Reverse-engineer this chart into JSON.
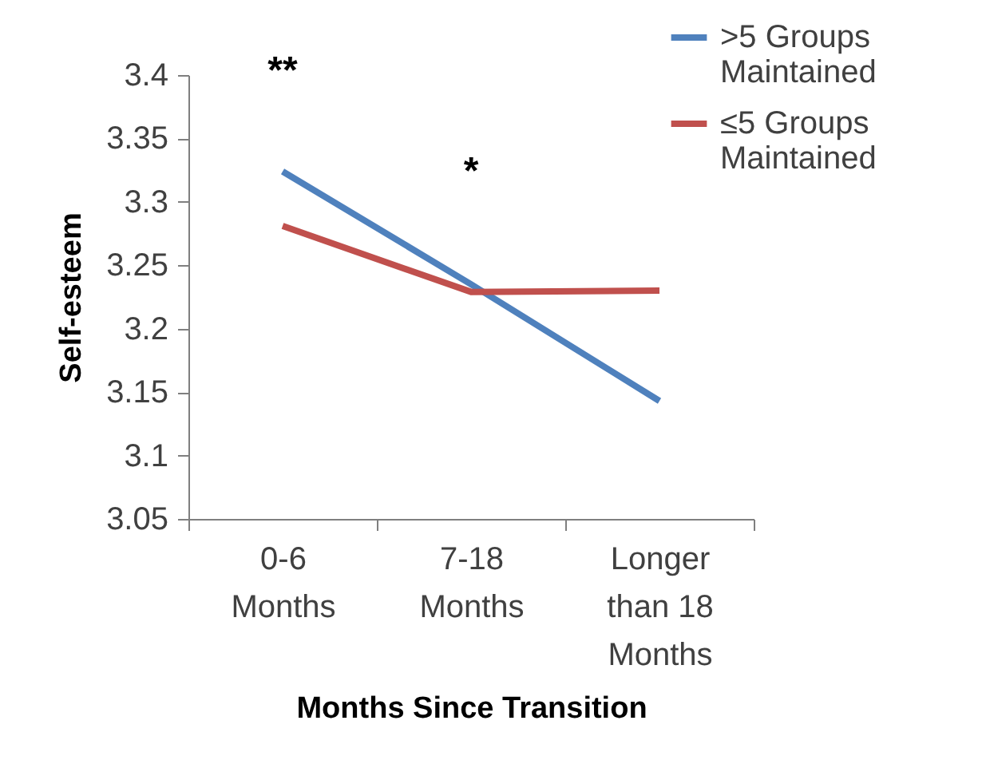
{
  "chart_data": {
    "type": "line",
    "xlabel": "Months Since Transition",
    "ylabel": "Self-esteem",
    "categories": [
      "0-6 Months",
      "7-18 Months",
      "Longer than 18 Months"
    ],
    "series": [
      {
        "name": ">5 Groups Maintained",
        "color": "#4f81bd",
        "values": [
          3.324,
          3.235,
          3.143
        ]
      },
      {
        "name": "≤5 Groups Maintained",
        "color": "#c0504d",
        "values": [
          3.281,
          3.229,
          3.23
        ]
      }
    ],
    "ylim": [
      3.05,
      3.4
    ],
    "yticks": [
      3.05,
      3.1,
      3.15,
      3.2,
      3.25,
      3.3,
      3.35,
      3.4
    ],
    "annotations": [
      "**",
      "*"
    ],
    "grid": false,
    "legend": "top right",
    "marker": "none",
    "line_style": "solid"
  }
}
